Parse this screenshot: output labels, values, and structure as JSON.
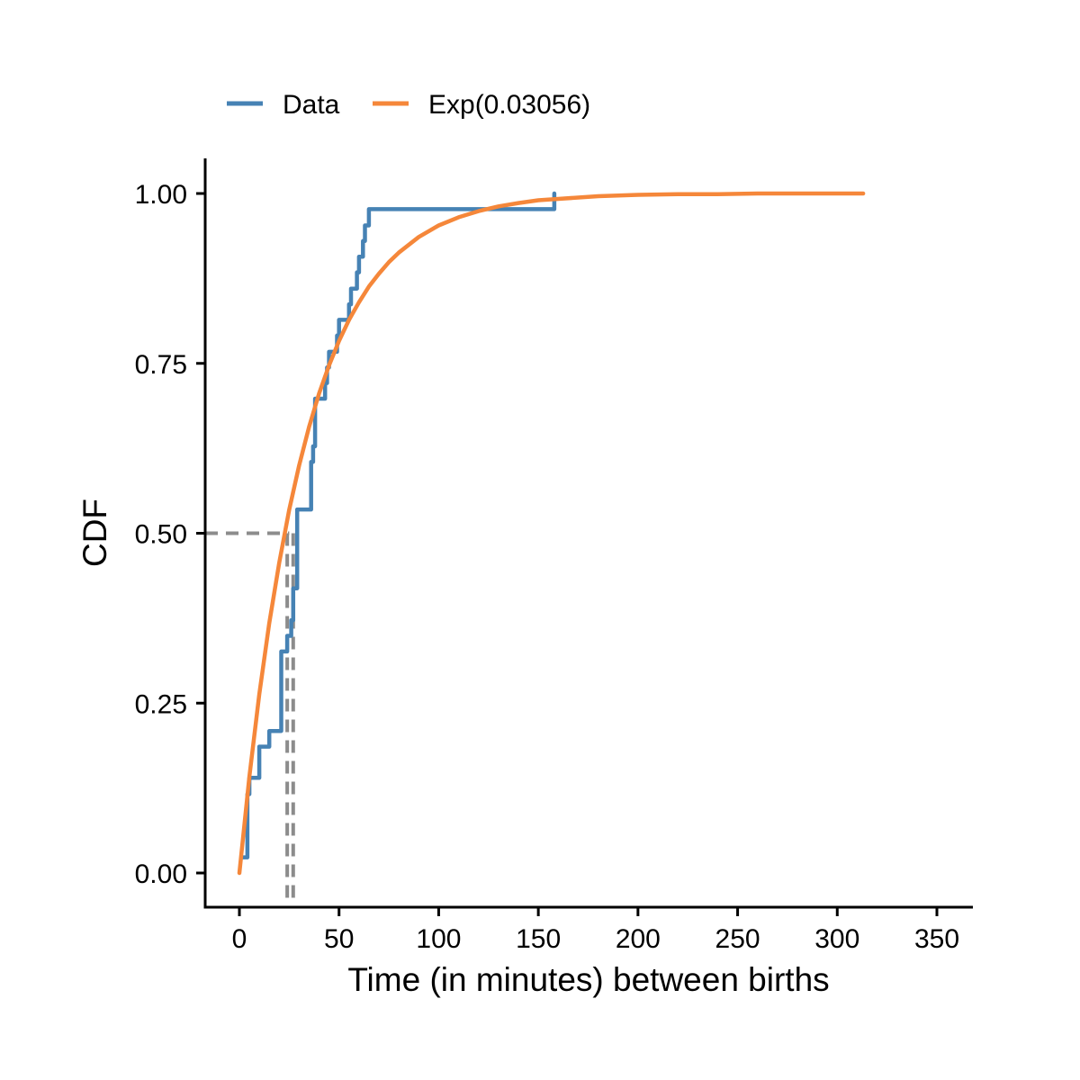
{
  "chart_data": {
    "type": "line",
    "title": "",
    "xlabel": "Time (in minutes) between births",
    "ylabel": "CDF",
    "xlim": [
      -17,
      368
    ],
    "ylim": [
      -0.05,
      1.05
    ],
    "xticks": [
      0,
      50,
      100,
      150,
      200,
      250,
      300,
      350
    ],
    "xtick_labels": [
      "0",
      "50",
      "100",
      "150",
      "200",
      "250",
      "300",
      "350"
    ],
    "yticks": [
      0,
      0.25,
      0.5,
      0.75,
      1.0
    ],
    "ytick_labels": [
      "0.00",
      "0.25",
      "0.50",
      "0.75",
      "1.00"
    ],
    "grid": false,
    "legend_position": "top-left",
    "series": [
      {
        "name": "Data",
        "color": "#4682B4",
        "style": "step",
        "x": [
          2,
          4,
          5,
          10,
          15,
          21,
          24,
          26,
          27,
          29,
          36,
          37,
          38,
          43,
          44,
          45,
          49,
          50,
          55,
          56,
          59,
          60,
          62,
          63,
          65,
          69,
          70,
          73,
          74,
          77,
          78,
          86,
          87,
          91,
          94,
          100,
          102,
          108,
          114,
          120,
          135,
          157,
          158
        ],
        "y": [
          0.023,
          0.116,
          0.14,
          0.186,
          0.209,
          0.326,
          0.349,
          0.372,
          0.419,
          0.535,
          0.605,
          0.628,
          0.698,
          0.721,
          0.744,
          0.767,
          0.791,
          0.814,
          0.837,
          0.86,
          0.884,
          0.907,
          0.93,
          0.953,
          0.977,
          0.977,
          0.977,
          0.977,
          0.977,
          0.977,
          0.977,
          0.977,
          0.977,
          0.977,
          0.977,
          0.977,
          0.977,
          0.977,
          0.977,
          0.977,
          0.977,
          0.977,
          1.0
        ]
      },
      {
        "name": "Exp(0.03056)",
        "color": "#F5873A",
        "style": "line",
        "x": [
          0,
          5,
          10,
          15,
          20,
          25,
          30,
          35,
          40,
          45,
          50,
          55,
          60,
          65,
          70,
          75,
          80,
          90,
          100,
          110,
          120,
          130,
          140,
          150,
          160,
          170,
          180,
          200,
          220,
          240,
          260,
          280,
          300,
          313
        ],
        "y": [
          0.0,
          0.142,
          0.263,
          0.368,
          0.457,
          0.535,
          0.6,
          0.657,
          0.706,
          0.747,
          0.783,
          0.814,
          0.84,
          0.863,
          0.882,
          0.899,
          0.913,
          0.936,
          0.953,
          0.965,
          0.974,
          0.981,
          0.986,
          0.99,
          0.992,
          0.994,
          0.996,
          0.998,
          0.999,
          0.999,
          1.0,
          1.0,
          1.0,
          1.0
        ]
      }
    ],
    "reference_lines": {
      "color": "#8C8C8C",
      "style": "dashed",
      "horizontal_y": 0.5,
      "horizontal_x_end": 25,
      "vertical_x": [
        24,
        27
      ],
      "vertical_y_top": 0.5
    }
  }
}
